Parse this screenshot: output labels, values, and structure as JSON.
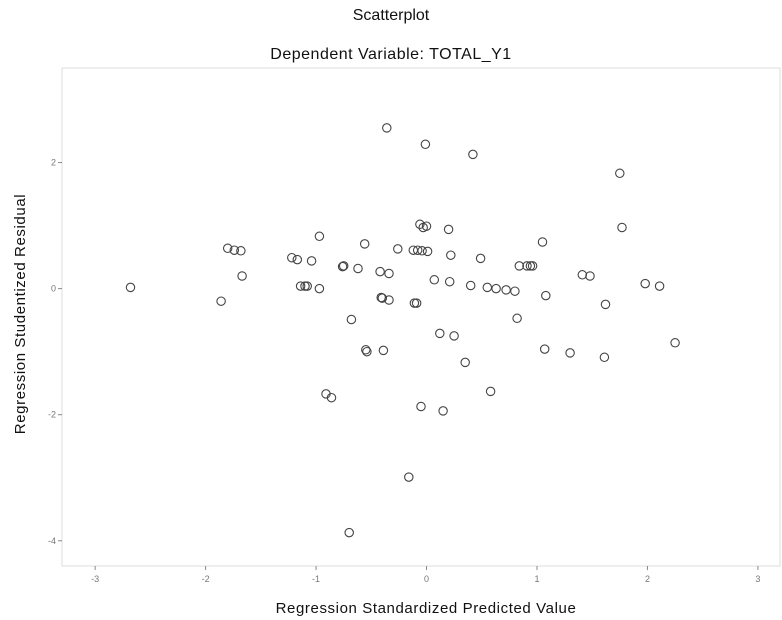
{
  "chart_data": {
    "type": "scatter",
    "title": "Scatterplot",
    "subtitle": "Dependent Variable: TOTAL_Y1",
    "xlabel": "Regression Standardized Predicted Value",
    "ylabel": "Regression Studentized Residual",
    "xlim": [
      -3.3,
      3.2
    ],
    "ylim": [
      -4.4,
      3.5
    ],
    "xticks": [
      -3,
      -2,
      -1,
      0,
      1,
      2,
      3
    ],
    "xtick_labels": [
      "-3",
      "-2",
      "-1",
      "0",
      "1",
      "2",
      "3"
    ],
    "yticks": [
      -4,
      -2,
      0,
      2
    ],
    "ytick_labels": [
      "-4",
      "-2",
      "0",
      "2"
    ],
    "grid": false,
    "legend": "none",
    "marker": "hollow-circle",
    "marker_color": "#444444",
    "points": [
      [
        -2.68,
        0.02
      ],
      [
        -1.86,
        -0.2
      ],
      [
        -1.8,
        0.64
      ],
      [
        -1.74,
        0.61
      ],
      [
        -1.68,
        0.6
      ],
      [
        -1.67,
        0.2
      ],
      [
        -1.22,
        0.49
      ],
      [
        -1.17,
        0.46
      ],
      [
        -1.14,
        0.04
      ],
      [
        -1.1,
        0.04
      ],
      [
        -1.08,
        0.04
      ],
      [
        -1.04,
        0.44
      ],
      [
        -0.97,
        0.83
      ],
      [
        -0.97,
        0.0
      ],
      [
        -0.91,
        -1.67
      ],
      [
        -0.86,
        -1.73
      ],
      [
        -0.76,
        0.35
      ],
      [
        -0.75,
        0.36
      ],
      [
        -0.7,
        -3.87
      ],
      [
        -0.68,
        -0.49
      ],
      [
        -0.62,
        0.32
      ],
      [
        -0.56,
        0.71
      ],
      [
        -0.55,
        -0.97
      ],
      [
        -0.54,
        -1.0
      ],
      [
        -0.42,
        0.27
      ],
      [
        -0.41,
        -0.14
      ],
      [
        -0.4,
        -0.15
      ],
      [
        -0.39,
        -0.98
      ],
      [
        -0.36,
        2.55
      ],
      [
        -0.34,
        0.24
      ],
      [
        -0.34,
        -0.18
      ],
      [
        -0.26,
        0.63
      ],
      [
        -0.16,
        -2.99
      ],
      [
        -0.12,
        0.61
      ],
      [
        -0.11,
        -0.23
      ],
      [
        -0.09,
        -0.23
      ],
      [
        -0.08,
        0.61
      ],
      [
        -0.06,
        1.02
      ],
      [
        -0.05,
        -1.87
      ],
      [
        -0.04,
        0.6
      ],
      [
        -0.03,
        0.97
      ],
      [
        -0.01,
        2.29
      ],
      [
        0.0,
        0.99
      ],
      [
        0.01,
        0.59
      ],
      [
        0.07,
        0.14
      ],
      [
        0.12,
        -0.71
      ],
      [
        0.15,
        -1.94
      ],
      [
        0.2,
        0.94
      ],
      [
        0.21,
        0.11
      ],
      [
        0.22,
        0.53
      ],
      [
        0.25,
        -0.75
      ],
      [
        0.35,
        -1.17
      ],
      [
        0.4,
        0.05
      ],
      [
        0.42,
        2.13
      ],
      [
        0.49,
        0.48
      ],
      [
        0.55,
        0.02
      ],
      [
        0.58,
        -1.63
      ],
      [
        0.63,
        0.0
      ],
      [
        0.72,
        -0.02
      ],
      [
        0.8,
        -0.04
      ],
      [
        0.82,
        -0.47
      ],
      [
        0.84,
        0.36
      ],
      [
        0.91,
        0.36
      ],
      [
        0.94,
        0.36
      ],
      [
        0.96,
        0.36
      ],
      [
        1.05,
        0.74
      ],
      [
        1.07,
        -0.96
      ],
      [
        1.08,
        -0.11
      ],
      [
        1.3,
        -1.02
      ],
      [
        1.41,
        0.22
      ],
      [
        1.48,
        0.2
      ],
      [
        1.61,
        -1.09
      ],
      [
        1.62,
        -0.25
      ],
      [
        1.75,
        1.83
      ],
      [
        1.77,
        0.97
      ],
      [
        1.98,
        0.08
      ],
      [
        2.11,
        0.04
      ],
      [
        2.25,
        -0.86
      ]
    ]
  }
}
